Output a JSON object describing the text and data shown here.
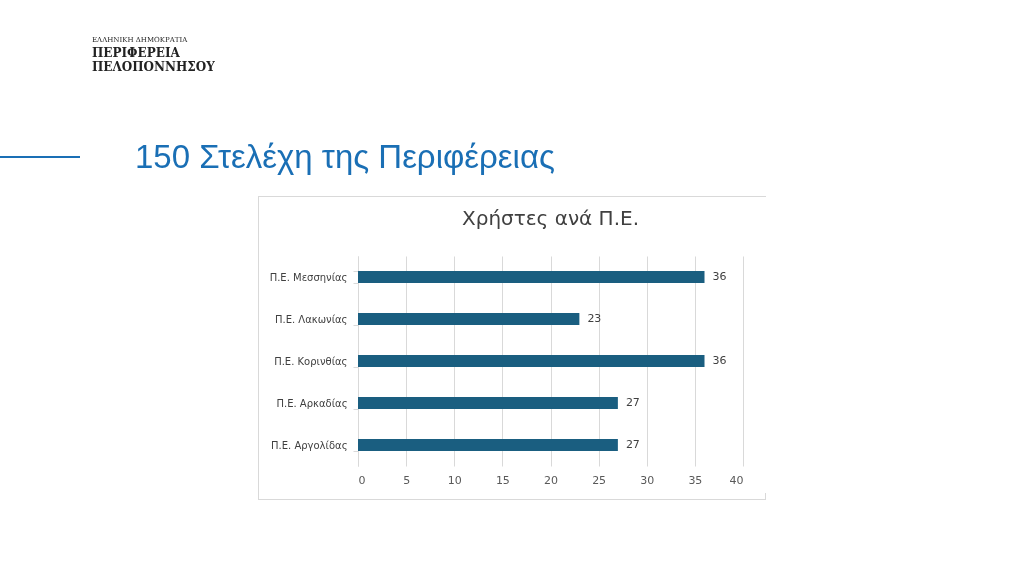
{
  "chart_data": {
    "type": "bar",
    "orientation": "horizontal",
    "title": "150 Στελέχη της Περιφέρειας",
    "subtitle": "Χρήστες ανά Π.Ε.",
    "annotations": [
      "ΕΛΛΗΝΙΚΗ ΔΗΜΟΚΡΑΤΙΑ",
      "ΠΕΡΙΦΕΡΕΙΑ ΠΕΛΟΠΟΝΝΗΣΟΥ"
    ],
    "categories": [
      "Π.Ε. Μεσσηνίας",
      "Π.Ε. Λακωνίας",
      "Π.Ε. Κορινθίας",
      "Π.Ε. Αρκαδίας",
      "Π.Ε. Αργολίδας"
    ],
    "values": [
      36,
      23,
      36,
      27,
      27
    ],
    "color": "#1a5e80",
    "xlim": [
      0,
      40
    ],
    "xticks": [
      0,
      5,
      10,
      15,
      20,
      25,
      30,
      35,
      40
    ],
    "grid": "x",
    "data_labels": true
  }
}
